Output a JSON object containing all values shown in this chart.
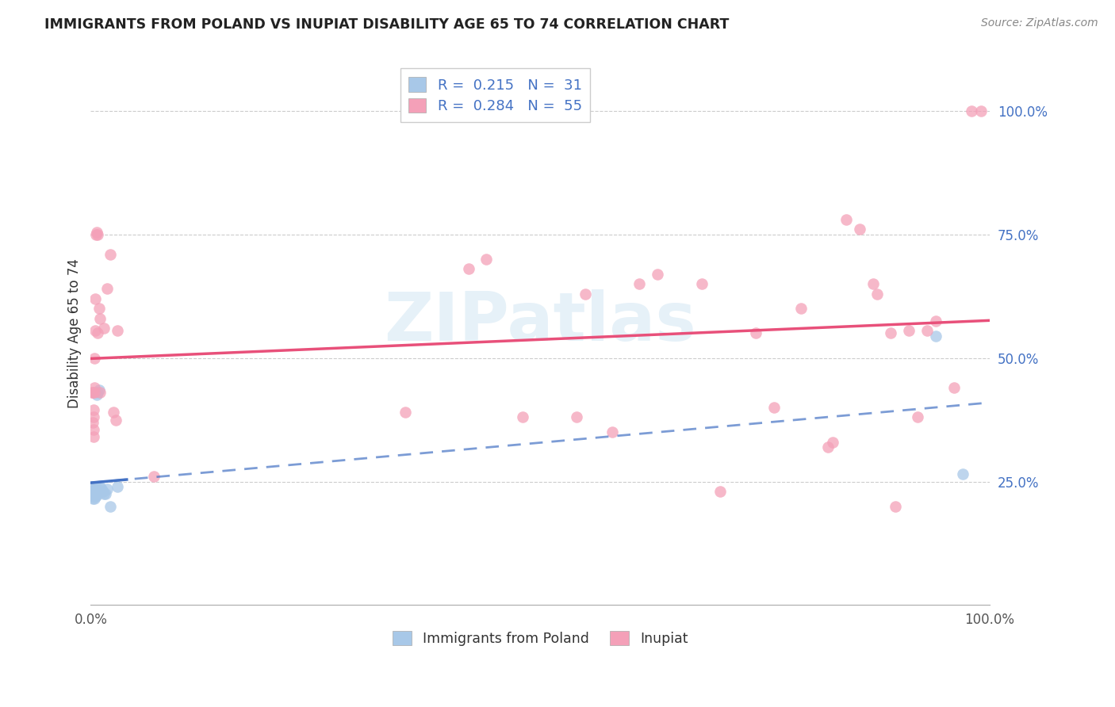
{
  "title": "IMMIGRANTS FROM POLAND VS INUPIAT DISABILITY AGE 65 TO 74 CORRELATION CHART",
  "source": "Source: ZipAtlas.com",
  "ylabel": "Disability Age 65 to 74",
  "legend_label1": "Immigrants from Poland",
  "legend_label2": "Inupiat",
  "r1": "0.215",
  "n1": "31",
  "r2": "0.284",
  "n2": "55",
  "color_blue": "#a8c8e8",
  "color_pink": "#f4a0b8",
  "line_blue": "#4472c4",
  "line_pink": "#e8507a",
  "watermark": "ZIPatlas",
  "blue_points": [
    [
      0.001,
      0.23
    ],
    [
      0.002,
      0.225
    ],
    [
      0.002,
      0.215
    ],
    [
      0.003,
      0.24
    ],
    [
      0.003,
      0.23
    ],
    [
      0.003,
      0.22
    ],
    [
      0.004,
      0.23
    ],
    [
      0.004,
      0.235
    ],
    [
      0.004,
      0.215
    ],
    [
      0.005,
      0.225
    ],
    [
      0.005,
      0.22
    ],
    [
      0.005,
      0.23
    ],
    [
      0.006,
      0.24
    ],
    [
      0.006,
      0.225
    ],
    [
      0.006,
      0.22
    ],
    [
      0.007,
      0.235
    ],
    [
      0.007,
      0.425
    ],
    [
      0.008,
      0.43
    ],
    [
      0.009,
      0.435
    ],
    [
      0.01,
      0.24
    ],
    [
      0.011,
      0.23
    ],
    [
      0.012,
      0.235
    ],
    [
      0.013,
      0.23
    ],
    [
      0.014,
      0.23
    ],
    [
      0.015,
      0.225
    ],
    [
      0.016,
      0.225
    ],
    [
      0.018,
      0.235
    ],
    [
      0.022,
      0.2
    ],
    [
      0.03,
      0.24
    ],
    [
      0.94,
      0.545
    ],
    [
      0.97,
      0.265
    ]
  ],
  "pink_points": [
    [
      0.001,
      0.43
    ],
    [
      0.002,
      0.43
    ],
    [
      0.002,
      0.37
    ],
    [
      0.003,
      0.38
    ],
    [
      0.003,
      0.355
    ],
    [
      0.003,
      0.395
    ],
    [
      0.003,
      0.34
    ],
    [
      0.004,
      0.43
    ],
    [
      0.004,
      0.44
    ],
    [
      0.004,
      0.5
    ],
    [
      0.005,
      0.62
    ],
    [
      0.005,
      0.555
    ],
    [
      0.006,
      0.75
    ],
    [
      0.007,
      0.755
    ],
    [
      0.008,
      0.75
    ],
    [
      0.008,
      0.55
    ],
    [
      0.009,
      0.6
    ],
    [
      0.01,
      0.43
    ],
    [
      0.01,
      0.58
    ],
    [
      0.015,
      0.56
    ],
    [
      0.018,
      0.64
    ],
    [
      0.022,
      0.71
    ],
    [
      0.025,
      0.39
    ],
    [
      0.028,
      0.375
    ],
    [
      0.03,
      0.555
    ],
    [
      0.07,
      0.26
    ],
    [
      0.35,
      0.39
    ],
    [
      0.42,
      0.68
    ],
    [
      0.44,
      0.7
    ],
    [
      0.48,
      0.38
    ],
    [
      0.54,
      0.38
    ],
    [
      0.55,
      0.63
    ],
    [
      0.58,
      0.35
    ],
    [
      0.61,
      0.65
    ],
    [
      0.63,
      0.67
    ],
    [
      0.68,
      0.65
    ],
    [
      0.7,
      0.23
    ],
    [
      0.74,
      0.55
    ],
    [
      0.76,
      0.4
    ],
    [
      0.79,
      0.6
    ],
    [
      0.82,
      0.32
    ],
    [
      0.825,
      0.33
    ],
    [
      0.84,
      0.78
    ],
    [
      0.855,
      0.76
    ],
    [
      0.87,
      0.65
    ],
    [
      0.875,
      0.63
    ],
    [
      0.89,
      0.55
    ],
    [
      0.895,
      0.2
    ],
    [
      0.91,
      0.555
    ],
    [
      0.92,
      0.38
    ],
    [
      0.93,
      0.555
    ],
    [
      0.94,
      0.575
    ],
    [
      0.96,
      0.44
    ],
    [
      0.98,
      1.0
    ],
    [
      0.99,
      1.0
    ]
  ]
}
